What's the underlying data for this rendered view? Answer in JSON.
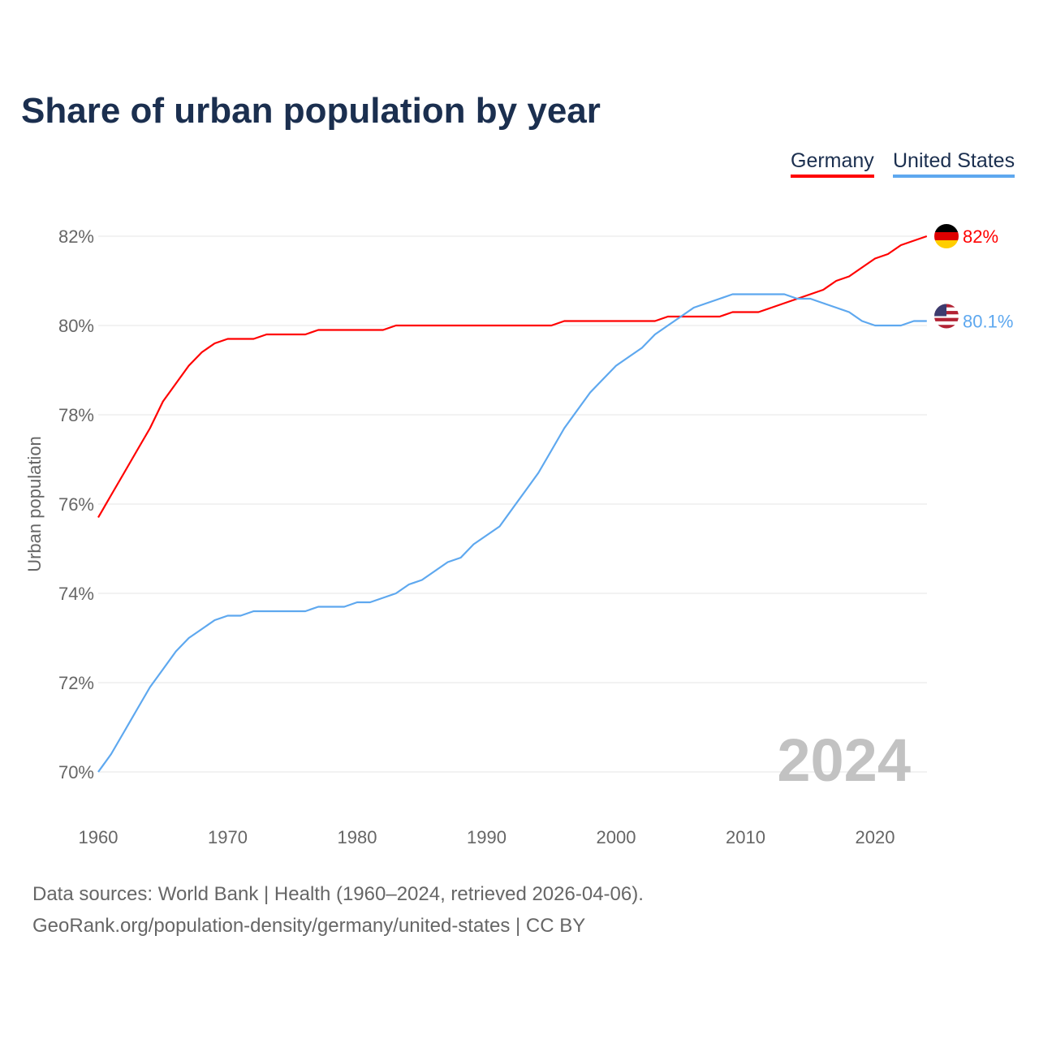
{
  "chart_data": {
    "type": "line",
    "title": "Share of urban population by year",
    "ylabel": "Urban population",
    "xlabel": "",
    "ylim": [
      69.5,
      83
    ],
    "xlim": [
      1960,
      2024
    ],
    "yticks": [
      70,
      72,
      74,
      76,
      78,
      80,
      82
    ],
    "ytick_labels": [
      "70%",
      "72%",
      "74%",
      "76%",
      "78%",
      "80%",
      "82%"
    ],
    "xticks": [
      1960,
      1970,
      1980,
      1990,
      2000,
      2010,
      2020
    ],
    "xtick_labels": [
      "1960",
      "1970",
      "1980",
      "1990",
      "2000",
      "2010",
      "2020"
    ],
    "grid": true,
    "legend_position": "top-right",
    "year_watermark": "2024",
    "x": [
      1960,
      1961,
      1962,
      1963,
      1964,
      1965,
      1966,
      1967,
      1968,
      1969,
      1970,
      1971,
      1972,
      1973,
      1974,
      1975,
      1976,
      1977,
      1978,
      1979,
      1980,
      1981,
      1982,
      1983,
      1984,
      1985,
      1986,
      1987,
      1988,
      1989,
      1990,
      1991,
      1992,
      1993,
      1994,
      1995,
      1996,
      1997,
      1998,
      1999,
      2000,
      2001,
      2002,
      2003,
      2004,
      2005,
      2006,
      2007,
      2008,
      2009,
      2010,
      2011,
      2012,
      2013,
      2014,
      2015,
      2016,
      2017,
      2018,
      2019,
      2020,
      2021,
      2022,
      2023,
      2024
    ],
    "series": [
      {
        "name": "Germany",
        "color": "#ff0000",
        "end_label": "82%",
        "values": [
          75.7,
          76.2,
          76.7,
          77.2,
          77.7,
          78.3,
          78.7,
          79.1,
          79.4,
          79.6,
          79.7,
          79.7,
          79.7,
          79.8,
          79.8,
          79.8,
          79.8,
          79.9,
          79.9,
          79.9,
          79.9,
          79.9,
          79.9,
          80.0,
          80.0,
          80.0,
          80.0,
          80.0,
          80.0,
          80.0,
          80.0,
          80.0,
          80.0,
          80.0,
          80.0,
          80.0,
          80.1,
          80.1,
          80.1,
          80.1,
          80.1,
          80.1,
          80.1,
          80.1,
          80.2,
          80.2,
          80.2,
          80.2,
          80.2,
          80.3,
          80.3,
          80.3,
          80.4,
          80.5,
          80.6,
          80.7,
          80.8,
          81.0,
          81.1,
          81.3,
          81.5,
          81.6,
          81.8,
          81.9,
          82.0
        ]
      },
      {
        "name": "United States",
        "color": "#5ea8ef",
        "end_label": "80.1%",
        "values": [
          70.0,
          70.4,
          70.9,
          71.4,
          71.9,
          72.3,
          72.7,
          73.0,
          73.2,
          73.4,
          73.5,
          73.5,
          73.6,
          73.6,
          73.6,
          73.6,
          73.6,
          73.7,
          73.7,
          73.7,
          73.8,
          73.8,
          73.9,
          74.0,
          74.2,
          74.3,
          74.5,
          74.7,
          74.8,
          75.1,
          75.3,
          75.5,
          75.9,
          76.3,
          76.7,
          77.2,
          77.7,
          78.1,
          78.5,
          78.8,
          79.1,
          79.3,
          79.5,
          79.8,
          80.0,
          80.2,
          80.4,
          80.5,
          80.6,
          80.7,
          80.7,
          80.7,
          80.7,
          80.7,
          80.6,
          80.6,
          80.5,
          80.4,
          80.3,
          80.1,
          80.0,
          80.0,
          80.0,
          80.1,
          80.1
        ]
      }
    ]
  },
  "footer": {
    "line1": "Data sources: World Bank | Health (1960–2024, retrieved 2026-04-06).",
    "line2": "GeoRank.org/population-density/germany/united-states | CC BY"
  }
}
